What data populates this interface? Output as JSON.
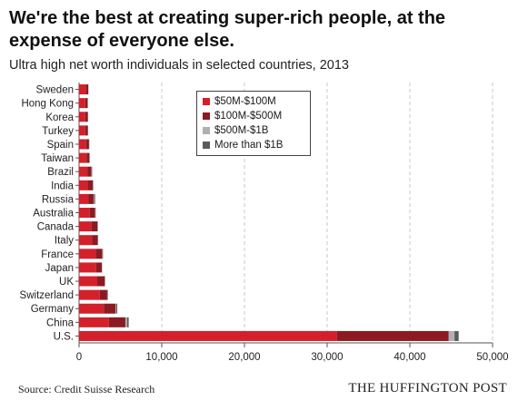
{
  "header": {
    "title": "We're the best at creating super-rich people, at the expense of everyone else.",
    "subtitle": "Ultra high net worth individuals in selected countries, 2013"
  },
  "footer": {
    "source": "Source: Credit Suisse Research",
    "brand": "THE HUFFINGTON POST"
  },
  "chart_data": {
    "type": "bar",
    "orientation": "horizontal",
    "stacked": true,
    "categories": [
      "Sweden",
      "Hong Kong",
      "Korea",
      "Turkey",
      "Spain",
      "Taiwan",
      "Brazil",
      "India",
      "Russia",
      "Australia",
      "Canada",
      "Italy",
      "France",
      "Japan",
      "UK",
      "Switzerland",
      "Germany",
      "China",
      "U.S."
    ],
    "series": [
      {
        "name": "$50M-$100M",
        "color": "#d3202a",
        "values": [
          800,
          750,
          750,
          750,
          850,
          900,
          1000,
          1100,
          1150,
          1300,
          1500,
          1600,
          2000,
          2050,
          2200,
          2500,
          3000,
          3600,
          31200
        ]
      },
      {
        "name": "$100M-$500M",
        "color": "#8c1a22",
        "values": [
          300,
          280,
          300,
          300,
          350,
          350,
          500,
          550,
          600,
          650,
          700,
          650,
          800,
          700,
          900,
          900,
          1400,
          2000,
          13500
        ]
      },
      {
        "name": "$500M-$1B",
        "color": "#b0b0b0",
        "values": [
          30,
          25,
          25,
          25,
          30,
          30,
          50,
          40,
          70,
          40,
          50,
          30,
          50,
          30,
          40,
          50,
          100,
          200,
          700
        ]
      },
      {
        "name": "More than $1B",
        "color": "#5a5a5a",
        "values": [
          20,
          25,
          20,
          20,
          20,
          20,
          40,
          40,
          120,
          30,
          40,
          30,
          40,
          20,
          30,
          50,
          120,
          200,
          500
        ]
      }
    ],
    "xlim": [
      0,
      50000
    ],
    "xticks": [
      "0",
      "10,000",
      "20,000",
      "30,000",
      "40,000",
      "50,000"
    ],
    "xtick_values": [
      0,
      10000,
      20000,
      30000,
      40000,
      50000
    ],
    "grid": "vertical dashed",
    "legend_position": "top-center"
  }
}
